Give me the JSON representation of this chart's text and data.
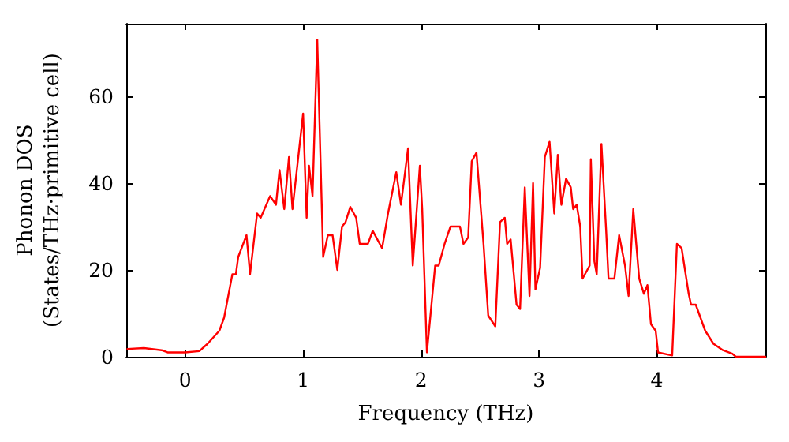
{
  "chart_data": {
    "type": "line",
    "xlabel": "Frequency (THz)",
    "ylabel": "Phonon DOS\n(States/THz·primitive cell)",
    "xlim": [
      -0.5,
      4.92
    ],
    "xticks": [
      0,
      1,
      2,
      3,
      4
    ],
    "ylim": [
      0,
      76.7
    ],
    "yticks": [
      0,
      20,
      40,
      60
    ],
    "grid": false,
    "marker": "none",
    "line_style": "solid",
    "series": [
      {
        "color": "#ff0000",
        "x": [
          -0.49,
          -0.35,
          -0.2,
          -0.15,
          0,
          0.12,
          0.19,
          0.29,
          0.33,
          0.4,
          0.43,
          0.45,
          0.52,
          0.55,
          0.61,
          0.64,
          0.72,
          0.77,
          0.8,
          0.84,
          0.88,
          0.91,
          1.0,
          1.03,
          1.05,
          1.08,
          1.12,
          1.17,
          1.21,
          1.25,
          1.29,
          1.33,
          1.36,
          1.4,
          1.45,
          1.48,
          1.55,
          1.59,
          1.67,
          1.72,
          1.79,
          1.83,
          1.89,
          1.93,
          1.99,
          2.01,
          2.05,
          2.12,
          2.15,
          2.2,
          2.25,
          2.33,
          2.36,
          2.4,
          2.43,
          2.47,
          2.53,
          2.57,
          2.63,
          2.67,
          2.71,
          2.73,
          2.76,
          2.81,
          2.84,
          2.88,
          2.92,
          2.95,
          2.97,
          3.01,
          3.05,
          3.09,
          3.13,
          3.16,
          3.19,
          3.23,
          3.27,
          3.29,
          3.32,
          3.35,
          3.37,
          3.43,
          3.44,
          3.47,
          3.49,
          3.53,
          3.57,
          3.59,
          3.64,
          3.68,
          3.73,
          3.76,
          3.8,
          3.85,
          3.89,
          3.92,
          3.95,
          3.99,
          4.01,
          4.13,
          4.17,
          4.21,
          4.27,
          4.29,
          4.33,
          4.37,
          4.41,
          4.48,
          4.56,
          4.64,
          4.67,
          4.92
        ],
        "values": [
          1.8,
          2,
          1.5,
          1,
          1,
          1.3,
          3,
          6,
          9,
          19,
          19,
          23,
          28,
          19,
          33,
          32,
          37,
          35,
          43,
          34,
          46,
          34,
          56,
          32,
          44,
          37,
          73,
          23,
          28,
          28,
          20,
          30,
          31,
          34.5,
          32,
          26,
          26,
          29,
          25,
          33,
          42.5,
          35,
          48,
          21,
          44,
          34,
          1,
          21,
          21,
          26,
          30,
          30,
          26,
          27.5,
          45,
          47,
          26,
          9.5,
          7,
          31,
          32,
          26,
          27,
          12,
          11,
          39,
          14,
          40,
          15.5,
          20.5,
          46,
          49.5,
          33,
          46.5,
          35,
          41,
          39,
          34,
          35,
          30,
          18,
          21,
          45.5,
          22,
          19,
          49,
          29,
          18,
          18,
          28,
          21,
          14,
          34,
          18,
          14.5,
          16.5,
          7.5,
          6,
          1,
          0.3,
          26,
          25,
          14.5,
          12,
          12,
          9,
          6,
          3,
          1.5,
          0.7,
          0,
          0
        ]
      }
    ]
  }
}
